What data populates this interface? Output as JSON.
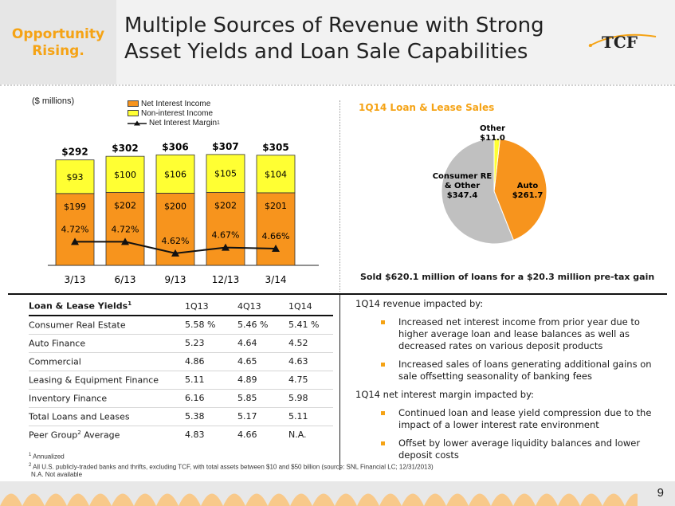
{
  "header": {
    "tagline_line1": "Opportunity",
    "tagline_line2": "Rising.",
    "title_line1": "Multiple Sources of Revenue with Strong",
    "title_line2": "Asset Yields and Loan Sale Capabilities",
    "logo_text": "TCF"
  },
  "units_label": "($ millions)",
  "chart_data": [
    {
      "type": "bar",
      "stacked": true,
      "categories": [
        "3/13",
        "6/13",
        "9/13",
        "12/13",
        "3/14"
      ],
      "series": [
        {
          "name": "Net Interest Income",
          "values": [
            199,
            202,
            200,
            202,
            201
          ],
          "labels": [
            "$199",
            "$202",
            "$200",
            "$202",
            "$201"
          ],
          "color": "#f7941d"
        },
        {
          "name": "Non-interest Income",
          "values": [
            93,
            100,
            106,
            105,
            104
          ],
          "labels": [
            "$93",
            "$100",
            "$106",
            "$105",
            "$104"
          ],
          "color": "#ffff33"
        }
      ],
      "totals": [
        "$292",
        "$302",
        "$306",
        "$307",
        "$305"
      ],
      "line_series": {
        "name": "Net Interest Margin",
        "superscript": "1",
        "values": [
          4.72,
          4.72,
          4.62,
          4.67,
          4.66
        ],
        "labels": [
          "4.72%",
          "4.72%",
          "4.62%",
          "4.67%",
          "4.66%"
        ]
      },
      "ylim": [
        0,
        320
      ],
      "margin_range": [
        4.55,
        4.95
      ],
      "legend_position": "top"
    },
    {
      "type": "pie",
      "title": "1Q14 Loan & Lease Sales",
      "slices": [
        {
          "name_line1": "Auto",
          "name_line2": "",
          "value": 261.7,
          "label": "$261.7",
          "color": "#f7941d"
        },
        {
          "name_line1": "Consumer RE",
          "name_line2": "& Other",
          "value": 347.4,
          "label": "$347.4",
          "color": "#c0c0c0"
        },
        {
          "name_line1": "Other",
          "name_line2": "",
          "value": 11.0,
          "label": "$11.0",
          "color": "#ffff33"
        }
      ],
      "caption": "Sold $620.1 million of loans for a $20.3 million pre-tax gain"
    }
  ],
  "yields_table": {
    "headers": [
      "Loan & Lease Yields",
      "1Q13",
      "4Q13",
      "1Q14"
    ],
    "header_sup": "1",
    "rows": [
      {
        "label": "Consumer Real Estate",
        "sup": "",
        "label_suffix": "",
        "v": [
          "5.58 %",
          "5.46 %",
          "5.41 %"
        ]
      },
      {
        "label": "Auto Finance",
        "sup": "",
        "label_suffix": "",
        "v": [
          "5.23",
          "4.64",
          "4.52"
        ]
      },
      {
        "label": "Commercial",
        "sup": "",
        "label_suffix": "",
        "v": [
          "4.86",
          "4.65",
          "4.63"
        ]
      },
      {
        "label": "Leasing & Equipment Finance",
        "sup": "",
        "label_suffix": "",
        "v": [
          "5.11",
          "4.89",
          "4.75"
        ]
      },
      {
        "label": "Inventory Finance",
        "sup": "",
        "label_suffix": "",
        "v": [
          "6.16",
          "5.85",
          "5.98"
        ]
      },
      {
        "label": "Total Loans and Leases",
        "sup": "",
        "label_suffix": "",
        "v": [
          "5.38",
          "5.17",
          "5.11"
        ]
      },
      {
        "label": "Peer Group",
        "sup": "2",
        "label_suffix": " Average",
        "v": [
          "4.83",
          "4.66",
          "N.A."
        ]
      }
    ]
  },
  "footnotes": {
    "n1_mark": "1",
    "n1": "Annualized",
    "n2_mark": "2",
    "n2": "All U.S. publicly-traded banks and thrifts, excluding TCF, with total assets between $10 and $50 billion (source: SNL Financial LC; 12/31/2013)",
    "n3": "N.A. Not available"
  },
  "commentary": {
    "heading1": "1Q14 revenue impacted by:",
    "bullets1": [
      "Increased net interest income from prior year due to higher average loan and lease balances as well as decreased rates on various deposit products",
      "Increased sales of loans generating additional gains on sale offsetting seasonality of banking fees"
    ],
    "heading2": "1Q14 net interest margin impacted by:",
    "bullets2": [
      "Continued loan and lease yield compression due to the impact of a lower interest rate environment",
      "Offset by lower average liquidity balances and lower deposit costs"
    ]
  },
  "page_number": "9"
}
